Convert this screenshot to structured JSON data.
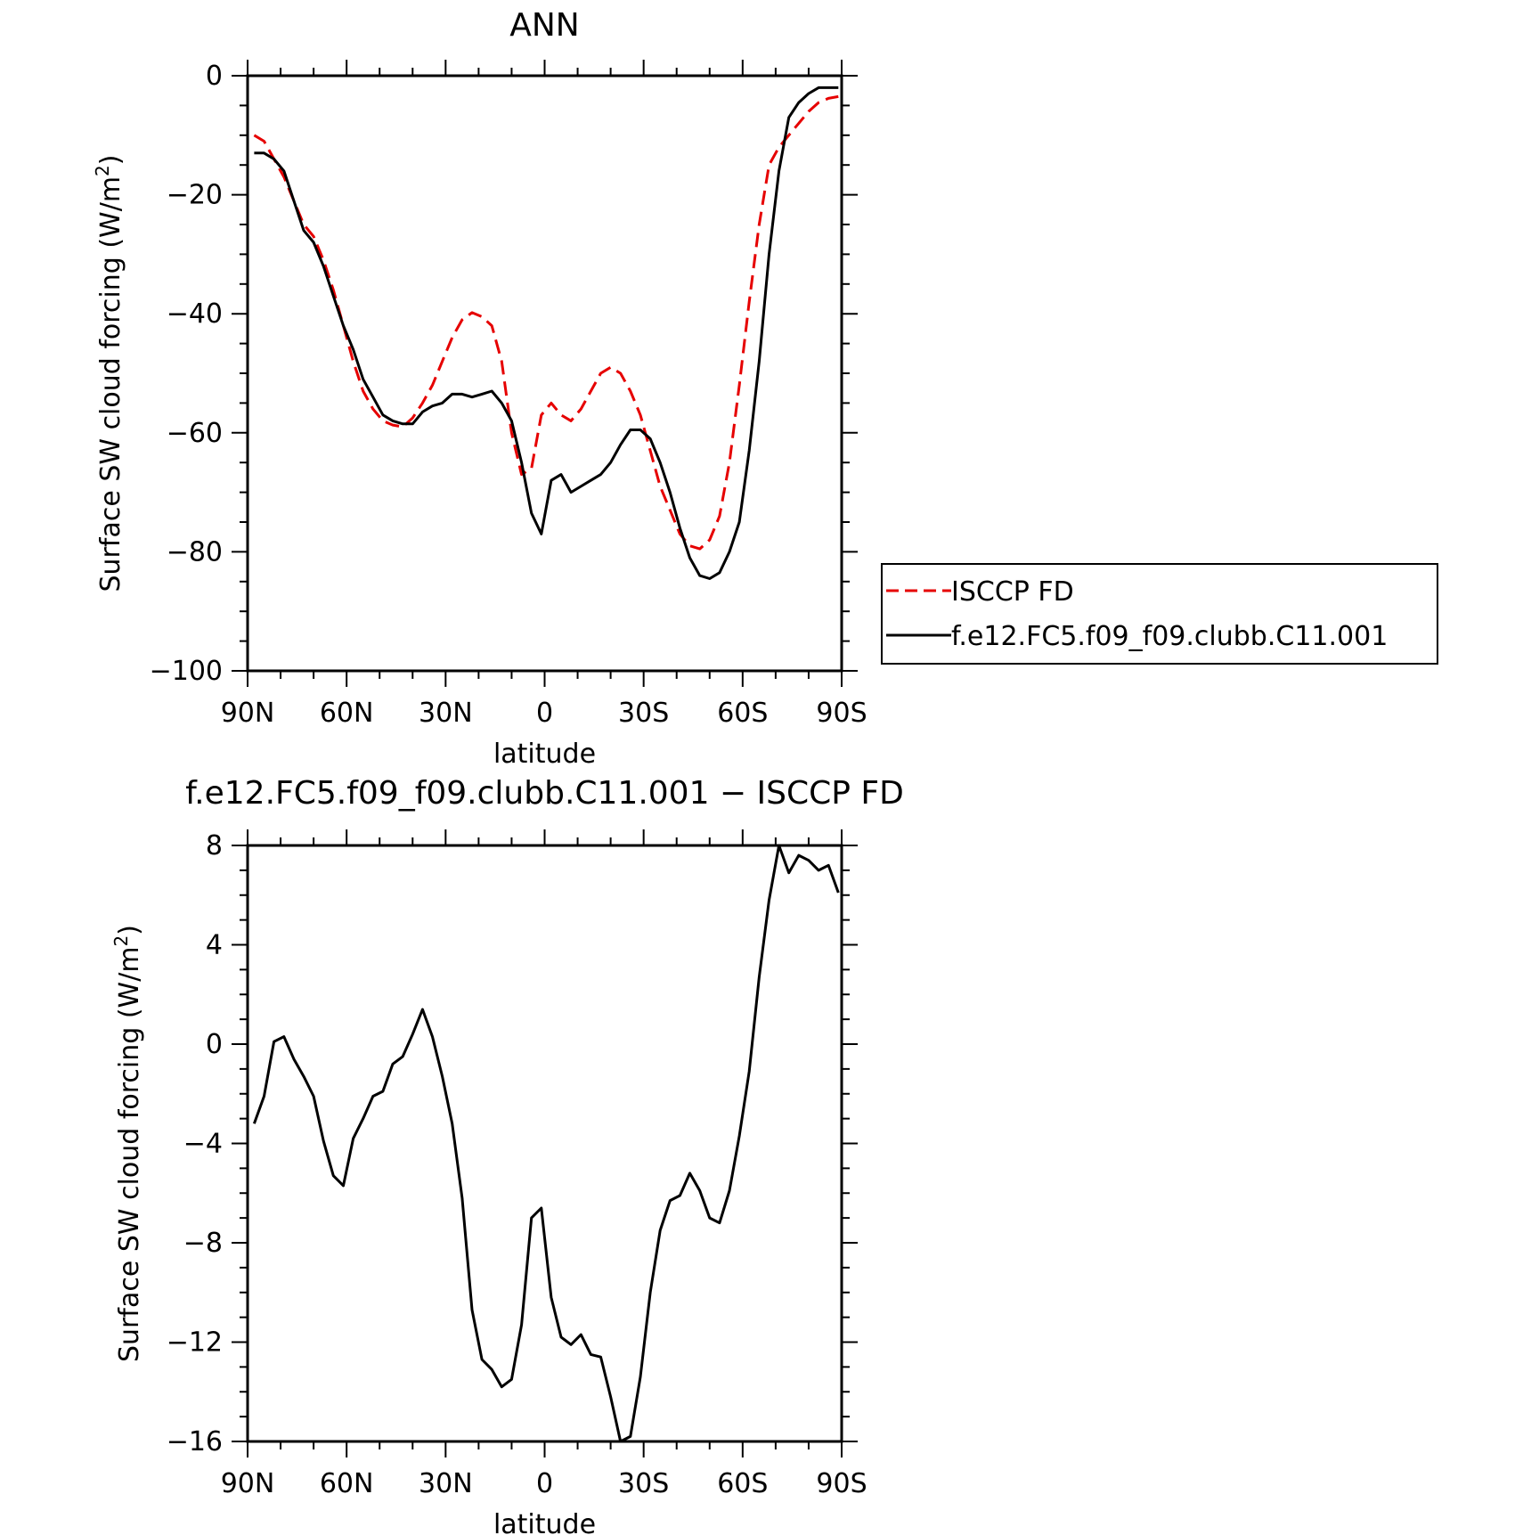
{
  "chart_data": [
    {
      "type": "line",
      "title": "ANN",
      "xlabel": "latitude",
      "ylabel": "Surface SW cloud forcing (W/m",
      "ylabel_sup": "2",
      "ylabel_close": ")",
      "x_tick_values": [
        90,
        60,
        30,
        0,
        -30,
        -60,
        -90
      ],
      "x_tick_labels": [
        "90N",
        "60N",
        "30N",
        "0",
        "30S",
        "60S",
        "90S"
      ],
      "y_ticks": [
        0,
        -20,
        -40,
        -60,
        -80,
        -100
      ],
      "y_tick_labels": [
        "0",
        "−20",
        "−40",
        "−60",
        "−80",
        "−100"
      ],
      "xlim": [
        90,
        -90
      ],
      "ylim": [
        -100,
        0
      ],
      "legend_position": "right",
      "series": [
        {
          "name": "ISCCP FD",
          "color": "#e60000",
          "dash": "dashed",
          "x": [
            88,
            85,
            82,
            79,
            76,
            73,
            70,
            67,
            64,
            61,
            58,
            55,
            52,
            49,
            46,
            43,
            40,
            37,
            34,
            31,
            28,
            25,
            22,
            19,
            16,
            13,
            10,
            7,
            4,
            1,
            -2,
            -5,
            -8,
            -11,
            -14,
            -17,
            -20,
            -23,
            -26,
            -29,
            -32,
            -35,
            -38,
            -41,
            -44,
            -47,
            -50,
            -53,
            -56,
            -59,
            -62,
            -65,
            -68,
            -71,
            -74,
            -77,
            -80,
            -83,
            -86,
            -89
          ],
          "y": [
            -10,
            -11,
            -14,
            -17,
            -21,
            -25,
            -27,
            -31,
            -36,
            -42,
            -48,
            -53,
            -56,
            -58,
            -58.7,
            -59,
            -57.5,
            -55,
            -52,
            -48,
            -44,
            -41,
            -39.8,
            -40.5,
            -42,
            -48,
            -60,
            -67,
            -66,
            -57,
            -55,
            -57,
            -58,
            -56,
            -53,
            -50,
            -49,
            -50,
            -53,
            -57,
            -63,
            -69,
            -73,
            -77,
            -79,
            -79.5,
            -78,
            -74,
            -65,
            -52,
            -38,
            -25,
            -15,
            -12,
            -10,
            -8,
            -6,
            -4.5,
            -3.8,
            -3.5
          ]
        },
        {
          "name": "f.e12.FC5.f09_f09.clubb.C11.001",
          "color": "#000000",
          "dash": "solid",
          "x": [
            88,
            85,
            82,
            79,
            76,
            73,
            70,
            67,
            64,
            61,
            58,
            55,
            52,
            49,
            46,
            43,
            40,
            37,
            34,
            31,
            28,
            25,
            22,
            19,
            16,
            13,
            10,
            7,
            4,
            1,
            -2,
            -5,
            -8,
            -11,
            -14,
            -17,
            -20,
            -23,
            -26,
            -29,
            -32,
            -35,
            -38,
            -41,
            -44,
            -47,
            -50,
            -53,
            -56,
            -59,
            -62,
            -65,
            -68,
            -71,
            -74,
            -77,
            -80,
            -83,
            -86,
            -89
          ],
          "y": [
            -13,
            -13,
            -14,
            -16,
            -21,
            -26,
            -28,
            -32,
            -37,
            -42,
            -46,
            -51,
            -54,
            -57,
            -58,
            -58.5,
            -58.5,
            -56.5,
            -55.5,
            -55,
            -53.5,
            -53.5,
            -54,
            -53.5,
            -53,
            -55,
            -58,
            -65,
            -73.5,
            -77,
            -68,
            -67,
            -70,
            -69,
            -68,
            -67,
            -65,
            -62,
            -59.5,
            -59.5,
            -61,
            -65,
            -70,
            -76,
            -81,
            -84,
            -84.5,
            -83.5,
            -80,
            -75,
            -63,
            -48,
            -30,
            -16,
            -7,
            -4.5,
            -3,
            -2,
            -2,
            -2
          ]
        }
      ]
    },
    {
      "type": "line",
      "title": "f.e12.FC5.f09_f09.clubb.C11.001 − ISCCP FD",
      "xlabel": "latitude",
      "ylabel": "Surface SW cloud forcing (W/m",
      "ylabel_sup": "2",
      "ylabel_close": ")",
      "x_tick_values": [
        90,
        60,
        30,
        0,
        -30,
        -60,
        -90
      ],
      "x_tick_labels": [
        "90N",
        "60N",
        "30N",
        "0",
        "30S",
        "60S",
        "90S"
      ],
      "y_ticks": [
        8,
        4,
        0,
        -4,
        -8,
        -12,
        -16
      ],
      "y_tick_labels": [
        "8",
        "4",
        "0",
        "−4",
        "−8",
        "−12",
        "−16"
      ],
      "xlim": [
        90,
        -90
      ],
      "ylim": [
        -16,
        8
      ],
      "series": [
        {
          "color": "#000000",
          "dash": "solid",
          "x": [
            88,
            85,
            82,
            79,
            76,
            73,
            70,
            67,
            64,
            61,
            58,
            55,
            52,
            49,
            46,
            43,
            40,
            37,
            34,
            31,
            28,
            25,
            22,
            19,
            16,
            13,
            10,
            7,
            4,
            1,
            -2,
            -5,
            -8,
            -11,
            -14,
            -17,
            -20,
            -23,
            -26,
            -29,
            -32,
            -35,
            -38,
            -41,
            -44,
            -47,
            -50,
            -53,
            -56,
            -59,
            -62,
            -65,
            -68,
            -71,
            -74,
            -77,
            -80,
            -83,
            -86,
            -89
          ],
          "y": [
            -3.2,
            -2.1,
            0.1,
            0.3,
            -0.6,
            -1.3,
            -2.1,
            -3.9,
            -5.3,
            -5.7,
            -3.8,
            -3.0,
            -2.1,
            -1.9,
            -0.8,
            -0.5,
            0.4,
            1.4,
            0.3,
            -1.3,
            -3.2,
            -6.2,
            -10.7,
            -12.7,
            -13.1,
            -13.8,
            -13.5,
            -11.3,
            -7.0,
            -6.6,
            -10.2,
            -11.8,
            -12.1,
            -11.7,
            -12.5,
            -12.6,
            -14.2,
            -16.0,
            -15.8,
            -13.4,
            -10.0,
            -7.5,
            -6.3,
            -6.1,
            -5.2,
            -5.9,
            -7.0,
            -7.2,
            -5.9,
            -3.7,
            -1.1,
            2.7,
            5.8,
            8.0,
            6.9,
            7.6,
            7.4,
            7.0,
            7.2,
            6.1
          ]
        }
      ]
    }
  ]
}
